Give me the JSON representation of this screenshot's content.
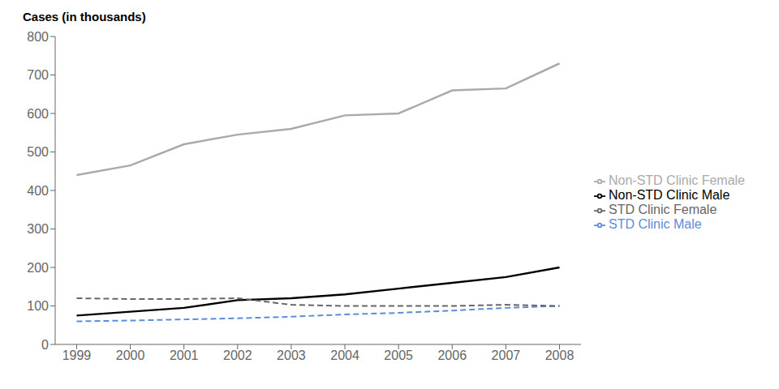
{
  "chart_data": {
    "type": "line",
    "title": "Cases (in thousands)",
    "x": [
      1999,
      2000,
      2001,
      2002,
      2003,
      2004,
      2005,
      2006,
      2007,
      2008
    ],
    "series": [
      {
        "name": "Non-STD Clinic Male",
        "color": "#000000",
        "line_style": "solid",
        "values": [
          75,
          85,
          95,
          115,
          120,
          130,
          145,
          160,
          175,
          200
        ]
      },
      {
        "name": "Non-STD Clinic Female",
        "color": "#aaaaaa",
        "line_style": "solid",
        "values": [
          440,
          465,
          520,
          545,
          560,
          595,
          600,
          660,
          665,
          730
        ]
      },
      {
        "name": "STD Clinic Male",
        "color": "#5b8dd9",
        "line_style": "dashed",
        "values": [
          60,
          62,
          65,
          68,
          72,
          78,
          82,
          88,
          95,
          100
        ]
      },
      {
        "name": "STD Clinic Female",
        "color": "#666666",
        "line_style": "dashed",
        "values": [
          120,
          118,
          118,
          120,
          103,
          100,
          100,
          100,
          103,
          100
        ]
      }
    ],
    "xlim": [
      1998.6,
      2008.4
    ],
    "xticks": [
      1999,
      2000,
      2001,
      2002,
      2003,
      2004,
      2005,
      2006,
      2007,
      2008
    ],
    "ylim": [
      0,
      800
    ],
    "yticks": [
      0,
      100,
      200,
      300,
      400,
      500,
      600,
      700,
      800
    ],
    "grid": false,
    "legend": "right"
  }
}
